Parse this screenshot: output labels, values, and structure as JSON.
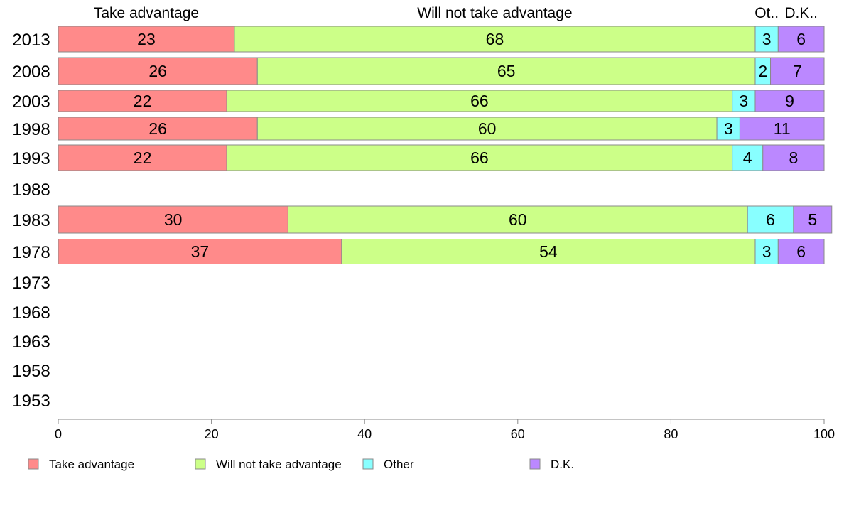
{
  "chart_data": {
    "type": "bar",
    "orientation": "horizontal",
    "stacked": true,
    "title": "",
    "xlabel": "",
    "ylabel": "",
    "xlim": [
      0,
      100
    ],
    "xticks": [
      0,
      20,
      40,
      60,
      80,
      100
    ],
    "categories": [
      "2013",
      "2008",
      "2003",
      "1998",
      "1993",
      "1988",
      "1983",
      "1978",
      "1973",
      "1968",
      "1963",
      "1958",
      "1953"
    ],
    "series": [
      {
        "name": "Take advantage",
        "color": "#ff8a8a",
        "values": [
          23,
          26,
          22,
          26,
          22,
          null,
          30,
          37,
          null,
          null,
          null,
          null,
          null
        ]
      },
      {
        "name": "Will not take advantage",
        "color": "#ccff88",
        "values": [
          68,
          65,
          66,
          60,
          66,
          null,
          60,
          54,
          null,
          null,
          null,
          null,
          null
        ]
      },
      {
        "name": "Other",
        "color": "#88ffff",
        "values": [
          3,
          2,
          3,
          3,
          4,
          null,
          6,
          3,
          null,
          null,
          null,
          null,
          null
        ]
      },
      {
        "name": "D.K.",
        "color": "#bb88ff",
        "values": [
          6,
          7,
          9,
          11,
          8,
          null,
          5,
          6,
          null,
          null,
          null,
          null,
          null
        ]
      }
    ],
    "top_labels": [
      "Take advantage",
      "Will not take advantage",
      "Ot..",
      "D.K.."
    ],
    "legend": {
      "position": "bottom",
      "entries": [
        "Take advantage",
        "Will not take advantage",
        "Other",
        "D.K."
      ]
    },
    "grid": false
  }
}
